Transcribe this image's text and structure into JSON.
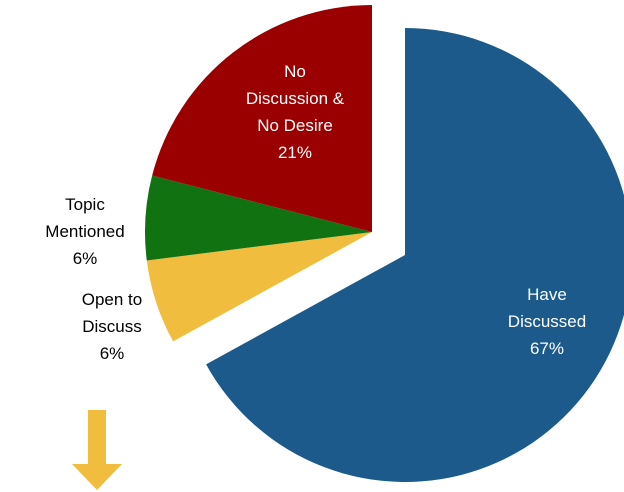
{
  "chart_data": {
    "type": "pie",
    "categories": [
      "Have\nDiscussed",
      "Open to\nDiscuss",
      "Topic\nMentioned",
      "No\nDiscussion &\nNo Desire"
    ],
    "values": [
      67,
      6,
      6,
      21
    ],
    "value_labels": [
      "67%",
      "6%",
      "6%",
      "21%"
    ],
    "colors": [
      "#1b5a8b",
      "#f1bd3f",
      "#117211",
      "#9a0000"
    ]
  }
}
